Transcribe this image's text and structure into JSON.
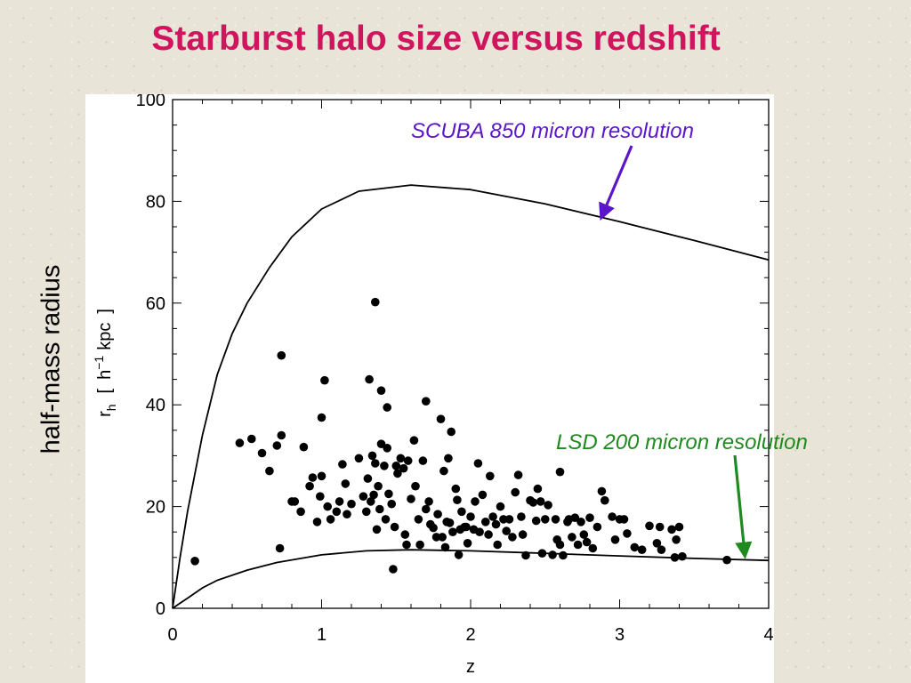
{
  "slide": {
    "title": "Starburst halo size versus redshift",
    "side_label": "half-mass radius"
  },
  "chart_data": {
    "type": "scatter",
    "xlabel": "z",
    "ylabel": "r_h [ h^-1 kpc ]",
    "ylabel_parts": {
      "symbol": "r",
      "sub": "h",
      "bracket_open": "[",
      "unit_h": "h",
      "exp": "−1",
      "unit_kpc": "kpc",
      "bracket_close": "]"
    },
    "xlim": [
      0,
      4
    ],
    "ylim": [
      0,
      100
    ],
    "xticks": [
      "0",
      "1",
      "2",
      "3",
      "4"
    ],
    "yticks": [
      "0",
      "20",
      "40",
      "60",
      "80",
      "100"
    ],
    "grid": false,
    "curves": [
      {
        "annotation": "SCUBA 850 micron resolution",
        "color": "#000000",
        "x": [
          0,
          0.05,
          0.1,
          0.2,
          0.3,
          0.4,
          0.5,
          0.65,
          0.8,
          1.0,
          1.25,
          1.6,
          2.0,
          2.5,
          3.0,
          3.5,
          4.0
        ],
        "y": [
          0,
          10,
          19,
          34,
          46,
          54,
          60,
          67,
          73,
          78.5,
          82,
          83.2,
          82.3,
          79.5,
          76,
          72.3,
          68.5
        ]
      },
      {
        "annotation": "LSD 200 micron resolution",
        "color": "#000000",
        "x": [
          0,
          0.05,
          0.1,
          0.2,
          0.3,
          0.5,
          0.7,
          1.0,
          1.3,
          1.6,
          2.0,
          2.5,
          3.0,
          3.5,
          4.0
        ],
        "y": [
          0,
          1,
          2,
          4,
          5.5,
          7.5,
          9,
          10.5,
          11.3,
          11.5,
          11.3,
          10.8,
          10.3,
          9.8,
          9.4
        ]
      }
    ],
    "annotations": [
      {
        "text": "SCUBA 850 micron resolution",
        "color": "#5b16c9",
        "arrow_to": [
          2.88,
          77
        ]
      },
      {
        "text": "LSD 200 micron resolution",
        "color": "#1f8a1f",
        "arrow_to": [
          3.84,
          10.5
        ]
      }
    ],
    "points": [
      [
        0.15,
        9.3
      ],
      [
        0.45,
        32.5
      ],
      [
        0.53,
        33.3
      ],
      [
        0.6,
        30.5
      ],
      [
        0.65,
        27
      ],
      [
        0.7,
        32
      ],
      [
        0.73,
        34
      ],
      [
        0.72,
        11.8
      ],
      [
        0.73,
        49.7
      ],
      [
        0.8,
        21
      ],
      [
        0.82,
        21
      ],
      [
        0.86,
        19
      ],
      [
        0.88,
        31.7
      ],
      [
        0.92,
        24
      ],
      [
        0.94,
        25.7
      ],
      [
        0.97,
        17
      ],
      [
        0.99,
        22
      ],
      [
        1.0,
        37.5
      ],
      [
        1.0,
        26
      ],
      [
        1.02,
        44.8
      ],
      [
        1.04,
        20
      ],
      [
        1.06,
        17.5
      ],
      [
        1.1,
        19
      ],
      [
        1.12,
        21
      ],
      [
        1.14,
        28.3
      ],
      [
        1.16,
        24.5
      ],
      [
        1.17,
        18.5
      ],
      [
        1.2,
        20.5
      ],
      [
        1.25,
        29.5
      ],
      [
        1.28,
        22
      ],
      [
        1.3,
        19
      ],
      [
        1.31,
        25.5
      ],
      [
        1.32,
        45
      ],
      [
        1.33,
        21
      ],
      [
        1.34,
        30
      ],
      [
        1.35,
        22.3
      ],
      [
        1.36,
        60.2
      ],
      [
        1.36,
        28.5
      ],
      [
        1.37,
        15.5
      ],
      [
        1.38,
        24
      ],
      [
        1.39,
        19.5
      ],
      [
        1.4,
        32.3
      ],
      [
        1.4,
        42.8
      ],
      [
        1.42,
        28
      ],
      [
        1.43,
        17.5
      ],
      [
        1.44,
        31.5
      ],
      [
        1.44,
        39.5
      ],
      [
        1.45,
        22.5
      ],
      [
        1.47,
        20.5
      ],
      [
        1.48,
        7.7
      ],
      [
        1.49,
        16
      ],
      [
        1.5,
        28
      ],
      [
        1.51,
        26.5
      ],
      [
        1.53,
        29.5
      ],
      [
        1.55,
        27.5
      ],
      [
        1.56,
        14.5
      ],
      [
        1.57,
        12.5
      ],
      [
        1.58,
        29
      ],
      [
        1.6,
        21.5
      ],
      [
        1.62,
        33
      ],
      [
        1.63,
        24
      ],
      [
        1.65,
        17.5
      ],
      [
        1.66,
        12.5
      ],
      [
        1.68,
        29
      ],
      [
        1.7,
        19.5
      ],
      [
        1.7,
        40.7
      ],
      [
        1.72,
        21
      ],
      [
        1.73,
        16.5
      ],
      [
        1.75,
        15.8
      ],
      [
        1.77,
        14
      ],
      [
        1.78,
        18.5
      ],
      [
        1.8,
        37.2
      ],
      [
        1.81,
        14
      ],
      [
        1.82,
        27
      ],
      [
        1.83,
        12
      ],
      [
        1.84,
        17
      ],
      [
        1.85,
        29.5
      ],
      [
        1.86,
        16.8
      ],
      [
        1.87,
        34.7
      ],
      [
        1.88,
        15
      ],
      [
        1.9,
        23.5
      ],
      [
        1.91,
        21.3
      ],
      [
        1.92,
        10.5
      ],
      [
        1.93,
        15.5
      ],
      [
        1.94,
        19
      ],
      [
        1.96,
        16
      ],
      [
        1.97,
        16
      ],
      [
        1.98,
        12.8
      ],
      [
        2.0,
        18
      ],
      [
        2.02,
        15.5
      ],
      [
        2.03,
        21
      ],
      [
        2.05,
        28.5
      ],
      [
        2.06,
        15
      ],
      [
        2.08,
        22.3
      ],
      [
        2.1,
        17
      ],
      [
        2.12,
        14.5
      ],
      [
        2.13,
        26
      ],
      [
        2.15,
        18
      ],
      [
        2.17,
        16.5
      ],
      [
        2.18,
        12.5
      ],
      [
        2.2,
        20
      ],
      [
        2.22,
        17.5
      ],
      [
        2.24,
        15.2
      ],
      [
        2.26,
        17.5
      ],
      [
        2.28,
        14
      ],
      [
        2.3,
        22.8
      ],
      [
        2.32,
        26.2
      ],
      [
        2.34,
        18
      ],
      [
        2.35,
        14.5
      ],
      [
        2.37,
        10.4
      ],
      [
        2.4,
        21.2
      ],
      [
        2.42,
        20.8
      ],
      [
        2.44,
        17.2
      ],
      [
        2.45,
        23.5
      ],
      [
        2.47,
        21
      ],
      [
        2.48,
        10.8
      ],
      [
        2.5,
        17.5
      ],
      [
        2.52,
        20.3
      ],
      [
        2.55,
        10.5
      ],
      [
        2.57,
        17.5
      ],
      [
        2.58,
        13.5
      ],
      [
        2.6,
        26.8
      ],
      [
        2.6,
        12.5
      ],
      [
        2.62,
        10.4
      ],
      [
        2.65,
        17
      ],
      [
        2.66,
        17.5
      ],
      [
        2.68,
        14
      ],
      [
        2.7,
        17.8
      ],
      [
        2.72,
        12.5
      ],
      [
        2.74,
        17
      ],
      [
        2.76,
        14.5
      ],
      [
        2.78,
        13
      ],
      [
        2.8,
        17.8
      ],
      [
        2.82,
        11.8
      ],
      [
        2.85,
        16
      ],
      [
        2.88,
        23
      ],
      [
        2.9,
        21.2
      ],
      [
        2.95,
        18
      ],
      [
        2.97,
        13.5
      ],
      [
        3.0,
        17.5
      ],
      [
        3.03,
        17.5
      ],
      [
        3.05,
        14.7
      ],
      [
        3.1,
        12
      ],
      [
        3.15,
        11.5
      ],
      [
        3.2,
        16.2
      ],
      [
        3.25,
        12.8
      ],
      [
        3.27,
        16
      ],
      [
        3.28,
        11.5
      ],
      [
        3.35,
        15.5
      ],
      [
        3.37,
        10
      ],
      [
        3.38,
        13.5
      ],
      [
        3.4,
        16
      ],
      [
        3.42,
        10.2
      ],
      [
        3.72,
        9.5
      ]
    ]
  }
}
